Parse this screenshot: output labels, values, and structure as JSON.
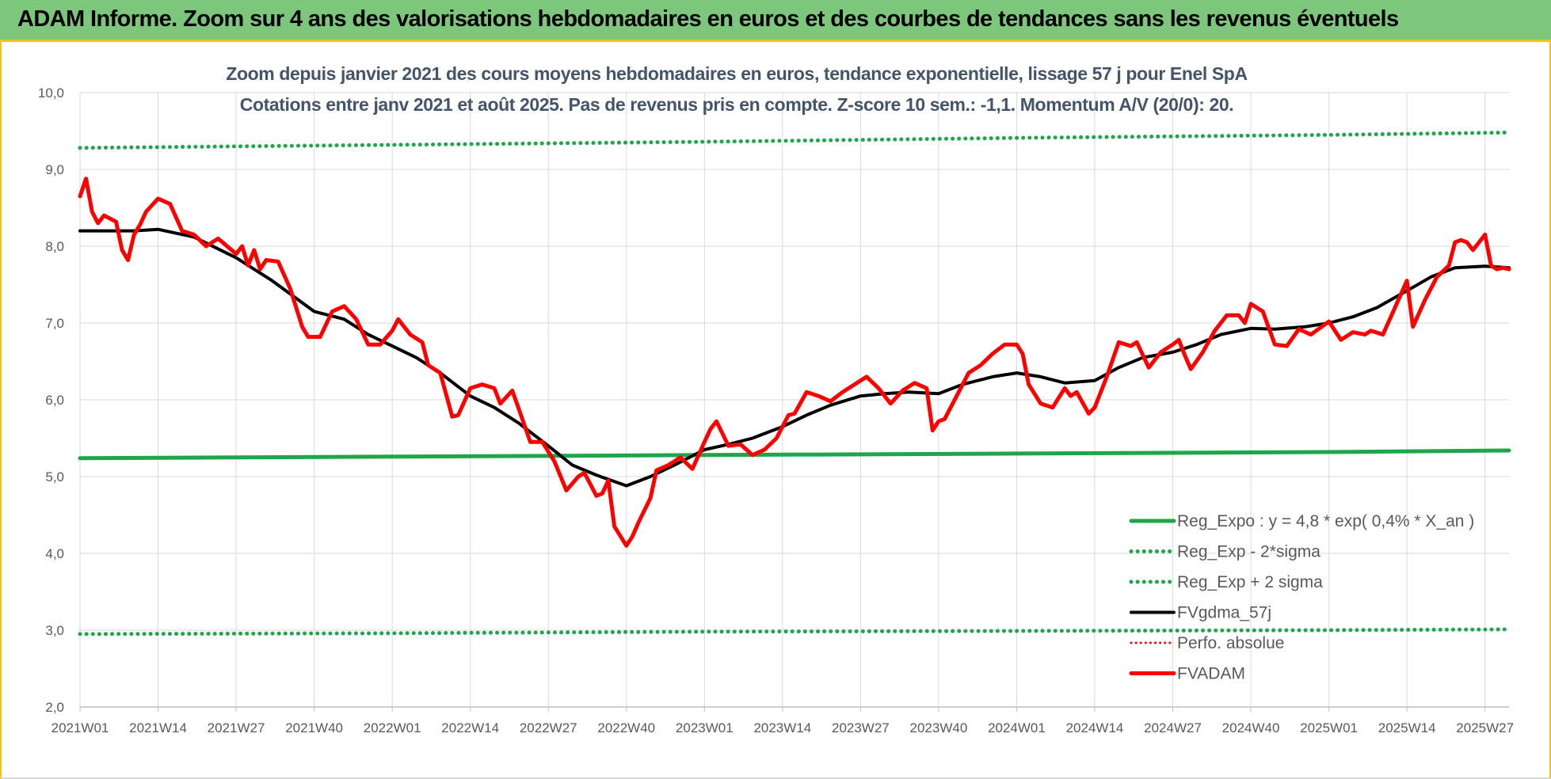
{
  "header": {
    "title": "ADAM Informe. Zoom sur 4 ans des valorisations hebdomadaires en euros et des courbes de tendances sans les revenus éventuels"
  },
  "chart": {
    "subtitle_line1": "Zoom depuis janvier 2021 des cours moyens hebdomadaires en euros, tendance exponentielle, lissage 57 j pour Enel SpA",
    "subtitle_line2": "Cotations entre janv 2021 et août 2025.  Pas de revenus pris en compte.  Z-score 10 sem.: -1,1.  Momentum A/V (20/0): 20."
  },
  "colors": {
    "reg_expo": "#1fa64a",
    "reg_bands": "#1fa64a",
    "fvgdma": "#000000",
    "perfo": "#ff0000",
    "fvadam": "#ff0000",
    "grid": "#d9d9d9"
  },
  "chart_data": {
    "type": "line",
    "ylim": [
      2.0,
      10.0
    ],
    "y_ticks": [
      "2,0",
      "3,0",
      "4,0",
      "5,0",
      "6,0",
      "7,0",
      "8,0",
      "9,0",
      "10,0"
    ],
    "x_ticks": [
      "2021W01",
      "2021W14",
      "2021W27",
      "2021W40",
      "2022W01",
      "2022W14",
      "2022W27",
      "2022W40",
      "2023W01",
      "2023W14",
      "2023W27",
      "2023W40",
      "2024W01",
      "2024W14",
      "2024W27",
      "2024W40",
      "2025W01",
      "2025W14",
      "2025W27"
    ],
    "x_range": [
      "2021W01",
      "2025W31"
    ],
    "grid": true,
    "legend_position": "right-inside",
    "series": [
      {
        "name": "Reg_Expo : y = 4,8 * exp( 0,4% *  X_an )",
        "style": "solid",
        "points": [
          [
            "2021W01",
            5.24
          ],
          [
            "2022W01",
            5.26
          ],
          [
            "2023W01",
            5.28
          ],
          [
            "2024W01",
            5.3
          ],
          [
            "2025W01",
            5.32
          ],
          [
            "2025W31",
            5.34
          ]
        ]
      },
      {
        "name": "Reg_Exp - 2*sigma",
        "style": "dotted",
        "points": [
          [
            "2021W01",
            2.95
          ],
          [
            "2022W01",
            2.96
          ],
          [
            "2023W01",
            2.98
          ],
          [
            "2024W01",
            2.99
          ],
          [
            "2025W01",
            3.0
          ],
          [
            "2025W31",
            3.01
          ]
        ]
      },
      {
        "name": "Reg_Exp + 2 sigma",
        "style": "dotted",
        "points": [
          [
            "2021W01",
            9.28
          ],
          [
            "2022W01",
            9.32
          ],
          [
            "2023W01",
            9.36
          ],
          [
            "2024W01",
            9.41
          ],
          [
            "2025W01",
            9.45
          ],
          [
            "2025W31",
            9.48
          ]
        ]
      },
      {
        "name": "FVgdma_57j",
        "style": "solid",
        "points": [
          [
            "2021W01",
            8.2
          ],
          [
            "2021W05",
            8.2
          ],
          [
            "2021W10",
            8.2
          ],
          [
            "2021W14",
            8.22
          ],
          [
            "2021W20",
            8.12
          ],
          [
            "2021W27",
            7.85
          ],
          [
            "2021W33",
            7.55
          ],
          [
            "2021W40",
            7.15
          ],
          [
            "2021W45",
            7.05
          ],
          [
            "2021W49",
            6.85
          ],
          [
            "2022W01",
            6.7
          ],
          [
            "2022W05",
            6.55
          ],
          [
            "2022W09",
            6.35
          ],
          [
            "2022W14",
            6.05
          ],
          [
            "2022W18",
            5.9
          ],
          [
            "2022W22",
            5.7
          ],
          [
            "2022W27",
            5.4
          ],
          [
            "2022W31",
            5.15
          ],
          [
            "2022W35",
            5.02
          ],
          [
            "2022W40",
            4.88
          ],
          [
            "2022W44",
            5.0
          ],
          [
            "2022W48",
            5.15
          ],
          [
            "2023W01",
            5.35
          ],
          [
            "2023W05",
            5.42
          ],
          [
            "2023W09",
            5.5
          ],
          [
            "2023W14",
            5.65
          ],
          [
            "2023W18",
            5.8
          ],
          [
            "2023W22",
            5.93
          ],
          [
            "2023W27",
            6.05
          ],
          [
            "2023W31",
            6.08
          ],
          [
            "2023W35",
            6.1
          ],
          [
            "2023W40",
            6.08
          ],
          [
            "2023W44",
            6.2
          ],
          [
            "2023W49",
            6.3
          ],
          [
            "2024W01",
            6.35
          ],
          [
            "2024W05",
            6.3
          ],
          [
            "2024W09",
            6.22
          ],
          [
            "2024W14",
            6.25
          ],
          [
            "2024W18",
            6.42
          ],
          [
            "2024W22",
            6.55
          ],
          [
            "2024W27",
            6.62
          ],
          [
            "2024W31",
            6.72
          ],
          [
            "2024W35",
            6.85
          ],
          [
            "2024W40",
            6.93
          ],
          [
            "2024W44",
            6.92
          ],
          [
            "2024W49",
            6.95
          ],
          [
            "2025W01",
            7.0
          ],
          [
            "2025W05",
            7.08
          ],
          [
            "2025W09",
            7.2
          ],
          [
            "2025W14",
            7.42
          ],
          [
            "2025W18",
            7.6
          ],
          [
            "2025W22",
            7.72
          ],
          [
            "2025W27",
            7.74
          ],
          [
            "2025W31",
            7.72
          ]
        ]
      },
      {
        "name": "Perfo. absolue",
        "style": "dotted",
        "points": []
      },
      {
        "name": "FVADAM",
        "style": "solid",
        "points": [
          [
            "2021W01",
            8.65
          ],
          [
            "2021W02",
            8.88
          ],
          [
            "2021W03",
            8.45
          ],
          [
            "2021W04",
            8.3
          ],
          [
            "2021W05",
            8.4
          ],
          [
            "2021W07",
            8.32
          ],
          [
            "2021W08",
            7.95
          ],
          [
            "2021W09",
            7.82
          ],
          [
            "2021W10",
            8.15
          ],
          [
            "2021W11",
            8.28
          ],
          [
            "2021W12",
            8.45
          ],
          [
            "2021W14",
            8.62
          ],
          [
            "2021W16",
            8.55
          ],
          [
            "2021W18",
            8.2
          ],
          [
            "2021W20",
            8.15
          ],
          [
            "2021W22",
            8.0
          ],
          [
            "2021W24",
            8.1
          ],
          [
            "2021W27",
            7.9
          ],
          [
            "2021W28",
            8.0
          ],
          [
            "2021W29",
            7.75
          ],
          [
            "2021W30",
            7.95
          ],
          [
            "2021W31",
            7.7
          ],
          [
            "2021W32",
            7.82
          ],
          [
            "2021W34",
            7.8
          ],
          [
            "2021W36",
            7.45
          ],
          [
            "2021W38",
            6.95
          ],
          [
            "2021W39",
            6.82
          ],
          [
            "2021W41",
            6.82
          ],
          [
            "2021W43",
            7.15
          ],
          [
            "2021W45",
            7.22
          ],
          [
            "2021W47",
            7.05
          ],
          [
            "2021W49",
            6.72
          ],
          [
            "2021W51",
            6.72
          ],
          [
            "2022W01",
            6.9
          ],
          [
            "2022W02",
            7.05
          ],
          [
            "2022W04",
            6.85
          ],
          [
            "2022W06",
            6.75
          ],
          [
            "2022W07",
            6.45
          ],
          [
            "2022W09",
            6.35
          ],
          [
            "2022W11",
            5.78
          ],
          [
            "2022W12",
            5.8
          ],
          [
            "2022W14",
            6.15
          ],
          [
            "2022W16",
            6.2
          ],
          [
            "2022W18",
            6.15
          ],
          [
            "2022W19",
            5.95
          ],
          [
            "2022W21",
            6.12
          ],
          [
            "2022W22",
            5.9
          ],
          [
            "2022W24",
            5.45
          ],
          [
            "2022W26",
            5.45
          ],
          [
            "2022W28",
            5.2
          ],
          [
            "2022W30",
            4.82
          ],
          [
            "2022W32",
            5.0
          ],
          [
            "2022W33",
            5.05
          ],
          [
            "2022W35",
            4.75
          ],
          [
            "2022W36",
            4.78
          ],
          [
            "2022W37",
            4.95
          ],
          [
            "2022W38",
            4.35
          ],
          [
            "2022W40",
            4.1
          ],
          [
            "2022W41",
            4.22
          ],
          [
            "2022W42",
            4.4
          ],
          [
            "2022W44",
            4.72
          ],
          [
            "2022W45",
            5.08
          ],
          [
            "2022W47",
            5.15
          ],
          [
            "2022W49",
            5.25
          ],
          [
            "2022W51",
            5.1
          ],
          [
            "2023W01",
            5.45
          ],
          [
            "2023W02",
            5.62
          ],
          [
            "2023W03",
            5.72
          ],
          [
            "2023W05",
            5.4
          ],
          [
            "2023W07",
            5.42
          ],
          [
            "2023W09",
            5.28
          ],
          [
            "2023W11",
            5.35
          ],
          [
            "2023W13",
            5.5
          ],
          [
            "2023W15",
            5.8
          ],
          [
            "2023W16",
            5.82
          ],
          [
            "2023W18",
            6.1
          ],
          [
            "2023W20",
            6.05
          ],
          [
            "2023W22",
            5.98
          ],
          [
            "2023W24",
            6.1
          ],
          [
            "2023W26",
            6.2
          ],
          [
            "2023W28",
            6.3
          ],
          [
            "2023W30",
            6.15
          ],
          [
            "2023W32",
            5.95
          ],
          [
            "2023W34",
            6.12
          ],
          [
            "2023W36",
            6.22
          ],
          [
            "2023W38",
            6.15
          ],
          [
            "2023W39",
            5.6
          ],
          [
            "2023W40",
            5.72
          ],
          [
            "2023W41",
            5.75
          ],
          [
            "2023W43",
            6.05
          ],
          [
            "2023W45",
            6.35
          ],
          [
            "2023W47",
            6.45
          ],
          [
            "2023W49",
            6.6
          ],
          [
            "2023W51",
            6.72
          ],
          [
            "2024W01",
            6.72
          ],
          [
            "2024W02",
            6.6
          ],
          [
            "2024W03",
            6.2
          ],
          [
            "2024W05",
            5.95
          ],
          [
            "2024W07",
            5.9
          ],
          [
            "2024W09",
            6.15
          ],
          [
            "2024W10",
            6.05
          ],
          [
            "2024W11",
            6.1
          ],
          [
            "2024W13",
            5.82
          ],
          [
            "2024W14",
            5.9
          ],
          [
            "2024W16",
            6.3
          ],
          [
            "2024W18",
            6.75
          ],
          [
            "2024W20",
            6.7
          ],
          [
            "2024W21",
            6.75
          ],
          [
            "2024W23",
            6.42
          ],
          [
            "2024W25",
            6.62
          ],
          [
            "2024W27",
            6.72
          ],
          [
            "2024W28",
            6.78
          ],
          [
            "2024W29",
            6.58
          ],
          [
            "2024W30",
            6.4
          ],
          [
            "2024W32",
            6.62
          ],
          [
            "2024W34",
            6.9
          ],
          [
            "2024W36",
            7.1
          ],
          [
            "2024W38",
            7.1
          ],
          [
            "2024W39",
            7.0
          ],
          [
            "2024W40",
            7.25
          ],
          [
            "2024W42",
            7.15
          ],
          [
            "2024W44",
            6.72
          ],
          [
            "2024W46",
            6.7
          ],
          [
            "2024W48",
            6.92
          ],
          [
            "2024W50",
            6.85
          ],
          [
            "2025W01",
            7.02
          ],
          [
            "2025W03",
            6.78
          ],
          [
            "2025W05",
            6.88
          ],
          [
            "2025W07",
            6.85
          ],
          [
            "2025W08",
            6.9
          ],
          [
            "2025W10",
            6.85
          ],
          [
            "2025W12",
            7.2
          ],
          [
            "2025W14",
            7.55
          ],
          [
            "2025W15",
            6.95
          ],
          [
            "2025W17",
            7.3
          ],
          [
            "2025W19",
            7.6
          ],
          [
            "2025W21",
            7.75
          ],
          [
            "2025W22",
            8.05
          ],
          [
            "2025W23",
            8.08
          ],
          [
            "2025W24",
            8.05
          ],
          [
            "2025W25",
            7.95
          ],
          [
            "2025W27",
            8.15
          ],
          [
            "2025W28",
            7.75
          ],
          [
            "2025W29",
            7.7
          ],
          [
            "2025W30",
            7.72
          ],
          [
            "2025W31",
            7.7
          ]
        ]
      }
    ]
  }
}
